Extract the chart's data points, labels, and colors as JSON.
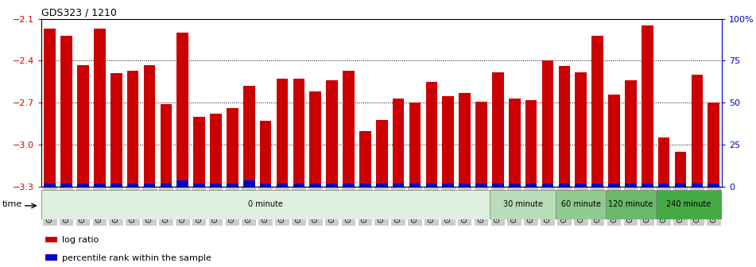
{
  "title": "GDS323 / 1210",
  "samples": [
    "GSM5811",
    "GSM5812",
    "GSM5813",
    "GSM5814",
    "GSM5815",
    "GSM5816",
    "GSM5817",
    "GSM5818",
    "GSM5819",
    "GSM5820",
    "GSM5821",
    "GSM5822",
    "GSM5823",
    "GSM5824",
    "GSM5825",
    "GSM5826",
    "GSM5827",
    "GSM5828",
    "GSM5829",
    "GSM5830",
    "GSM5831",
    "GSM5832",
    "GSM5833",
    "GSM5834",
    "GSM5835",
    "GSM5836",
    "GSM5837",
    "GSM5838",
    "GSM5839",
    "GSM5840",
    "GSM5841",
    "GSM5842",
    "GSM5843",
    "GSM5844",
    "GSM5845",
    "GSM5846",
    "GSM5847",
    "GSM5848",
    "GSM5849",
    "GSM5850",
    "GSM5851"
  ],
  "log_ratio": [
    -2.17,
    -2.22,
    -2.43,
    -2.17,
    -2.49,
    -2.47,
    -2.43,
    -2.71,
    -2.2,
    -2.8,
    -2.78,
    -2.74,
    -2.58,
    -2.83,
    -2.53,
    -2.53,
    -2.62,
    -2.54,
    -2.47,
    -2.9,
    -2.82,
    -2.67,
    -2.7,
    -2.55,
    -2.65,
    -2.63,
    -2.69,
    -2.48,
    -2.67,
    -2.68,
    -2.4,
    -2.44,
    -2.48,
    -2.22,
    -2.64,
    -2.54,
    -2.15,
    -2.95,
    -3.05,
    -2.5,
    -2.7
  ],
  "percentile_rank": [
    2,
    2,
    2,
    2,
    2,
    2,
    2,
    2,
    4,
    2,
    2,
    2,
    4,
    2,
    2,
    2,
    2,
    2,
    2,
    2,
    2,
    2,
    2,
    2,
    2,
    2,
    2,
    2,
    2,
    2,
    2,
    2,
    2,
    2,
    2,
    2,
    2,
    2,
    2,
    2,
    2
  ],
  "ylim_left": [
    -3.3,
    -2.1
  ],
  "yticks_left": [
    -3.3,
    -3.0,
    -2.7,
    -2.4,
    -2.1
  ],
  "ylim_right": [
    0,
    100
  ],
  "yticks_right": [
    0,
    25,
    50,
    75,
    100
  ],
  "yticklabels_right": [
    "0",
    "25",
    "50",
    "75",
    "100%"
  ],
  "bar_color": "#cc0000",
  "percentile_color": "#0000cc",
  "grid_color": "#000000",
  "time_groups": [
    {
      "label": "0 minute",
      "start": 0,
      "end": 27,
      "color": "#e0f0e0"
    },
    {
      "label": "30 minute",
      "start": 27,
      "end": 31,
      "color": "#b8ddb8"
    },
    {
      "label": "60 minute",
      "start": 31,
      "end": 34,
      "color": "#8fca8f"
    },
    {
      "label": "120 minute",
      "start": 34,
      "end": 37,
      "color": "#6ab86a"
    },
    {
      "label": "240 minute",
      "start": 37,
      "end": 41,
      "color": "#44aa44"
    }
  ],
  "xlabel_time": "time",
  "legend_log": "log ratio",
  "legend_pct": "percentile rank within the sample",
  "tick_label_color": "#cc0000",
  "right_axis_color": "#0000cc",
  "xticklabel_bg": "#cccccc"
}
